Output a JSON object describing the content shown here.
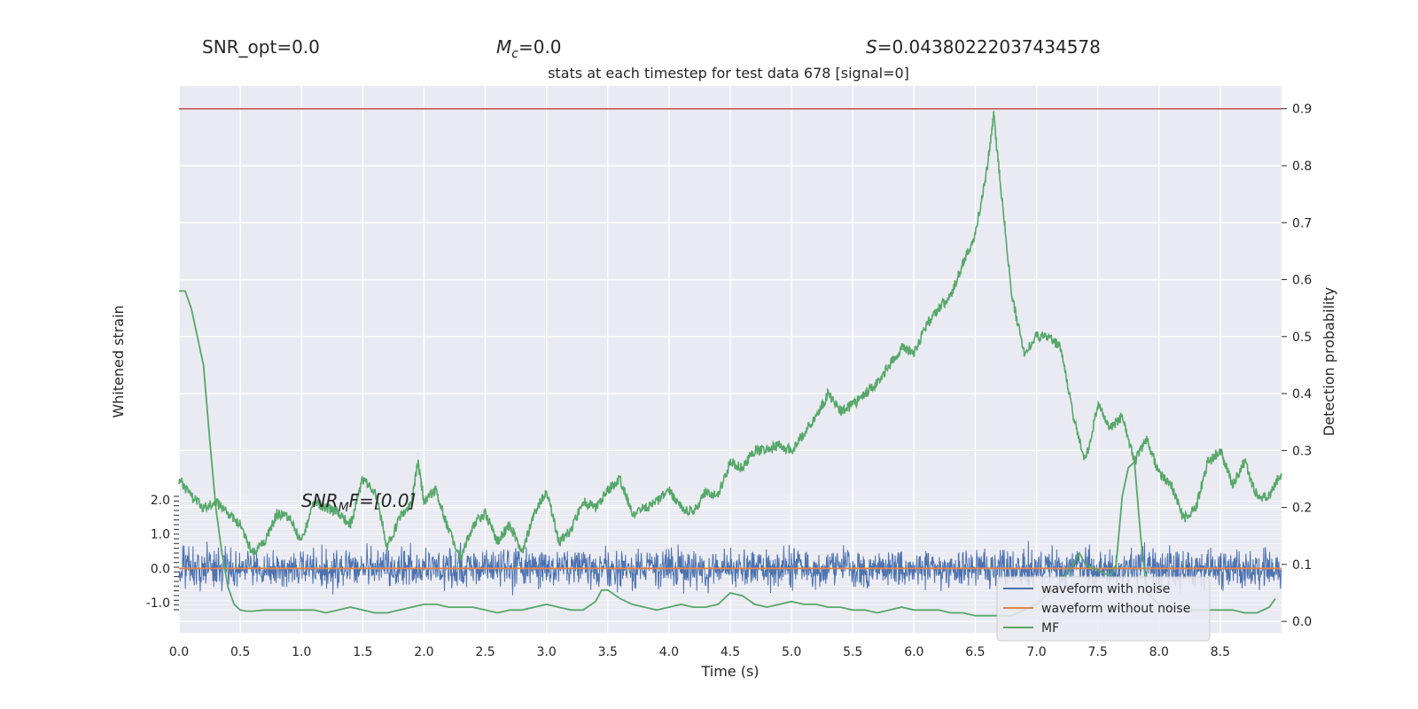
{
  "header": {
    "snr_opt": "SNR_opt=0.0",
    "mc_symbol": "M",
    "mc_sub": "c",
    "mc_value": "=0.0",
    "s_symbol": "S",
    "s_value": "=0.04380222037434578",
    "snr_mf_label": "SNR",
    "snr_mf_sub": "M",
    "snr_mf_rest": "F=[0.0]"
  },
  "chart_data": {
    "type": "line",
    "title": "stats at each timestep for test data 678 [signal=0]",
    "xlabel": "Time (s)",
    "ylabel_left": "Whitened strain",
    "ylabel_right": "Detection probability",
    "xlim": [
      0.0,
      9.0
    ],
    "ylim_right": [
      -0.02,
      0.94
    ],
    "ylim_left": [
      -1.2,
      2.1
    ],
    "x_ticks": [
      "0.0",
      "0.5",
      "1.0",
      "1.5",
      "2.0",
      "2.5",
      "3.0",
      "3.5",
      "4.0",
      "4.5",
      "5.0",
      "5.5",
      "6.0",
      "6.5",
      "7.0",
      "7.5",
      "8.0",
      "8.5"
    ],
    "x_tick_values": [
      0.0,
      0.5,
      1.0,
      1.5,
      2.0,
      2.5,
      3.0,
      3.5,
      4.0,
      4.5,
      5.0,
      5.5,
      6.0,
      6.5,
      7.0,
      7.5,
      8.0,
      8.5
    ],
    "y_right_ticks": [
      "0.0",
      "0.1",
      "0.2",
      "0.3",
      "0.4",
      "0.5",
      "0.6",
      "0.7",
      "0.8",
      "0.9"
    ],
    "y_right_tick_values": [
      0.0,
      0.1,
      0.2,
      0.3,
      0.4,
      0.5,
      0.6,
      0.7,
      0.8,
      0.9
    ],
    "y_left_ticks": [
      "2.0",
      "1.0",
      "0.0",
      "-1.0"
    ],
    "y_left_tick_values": [
      2.0,
      1.0,
      0.0,
      -1.0
    ],
    "threshold": 0.9,
    "grid": true,
    "legend_position": "lower-right",
    "legend": [
      "waveform with noise",
      "waveform without noise",
      "MF"
    ],
    "colors": {
      "noise": "#4c72b0",
      "clean": "#dd8452",
      "mf": "#55a868",
      "threshold": "#c44e52",
      "panel_bg": "#eaeaf2",
      "grid": "#ffffff"
    },
    "series": [
      {
        "name": "Detection probability",
        "axis": "right",
        "x": [
          0.0,
          0.1,
          0.2,
          0.3,
          0.4,
          0.5,
          0.6,
          0.7,
          0.8,
          0.9,
          1.0,
          1.1,
          1.2,
          1.3,
          1.4,
          1.5,
          1.6,
          1.7,
          1.8,
          1.9,
          1.95,
          2.0,
          2.1,
          2.2,
          2.3,
          2.4,
          2.5,
          2.6,
          2.7,
          2.8,
          2.9,
          3.0,
          3.1,
          3.2,
          3.3,
          3.4,
          3.5,
          3.6,
          3.7,
          3.8,
          3.9,
          4.0,
          4.1,
          4.2,
          4.3,
          4.4,
          4.5,
          4.6,
          4.7,
          4.8,
          4.9,
          5.0,
          5.1,
          5.2,
          5.3,
          5.4,
          5.5,
          5.6,
          5.7,
          5.8,
          5.9,
          6.0,
          6.1,
          6.2,
          6.3,
          6.4,
          6.5,
          6.6,
          6.65,
          6.7,
          6.8,
          6.9,
          7.0,
          7.1,
          7.2,
          7.3,
          7.4,
          7.5,
          7.6,
          7.7,
          7.8,
          7.9,
          8.0,
          8.1,
          8.2,
          8.3,
          8.4,
          8.5,
          8.6,
          8.7,
          8.8,
          8.9,
          9.0
        ],
        "values": [
          0.25,
          0.22,
          0.2,
          0.21,
          0.19,
          0.17,
          0.12,
          0.14,
          0.19,
          0.18,
          0.14,
          0.21,
          0.2,
          0.19,
          0.17,
          0.25,
          0.23,
          0.13,
          0.18,
          0.21,
          0.28,
          0.21,
          0.23,
          0.16,
          0.11,
          0.17,
          0.19,
          0.14,
          0.17,
          0.12,
          0.19,
          0.23,
          0.14,
          0.16,
          0.21,
          0.2,
          0.23,
          0.25,
          0.19,
          0.2,
          0.21,
          0.23,
          0.2,
          0.19,
          0.23,
          0.22,
          0.28,
          0.27,
          0.3,
          0.3,
          0.31,
          0.3,
          0.33,
          0.36,
          0.4,
          0.37,
          0.38,
          0.4,
          0.42,
          0.45,
          0.48,
          0.47,
          0.52,
          0.55,
          0.57,
          0.63,
          0.68,
          0.8,
          0.89,
          0.78,
          0.57,
          0.47,
          0.5,
          0.5,
          0.48,
          0.36,
          0.28,
          0.38,
          0.34,
          0.36,
          0.28,
          0.32,
          0.26,
          0.24,
          0.18,
          0.2,
          0.28,
          0.3,
          0.24,
          0.28,
          0.22,
          0.22,
          0.26
        ]
      },
      {
        "name": "MF",
        "axis": "right",
        "x": [
          0.0,
          0.05,
          0.1,
          0.2,
          0.25,
          0.3,
          0.35,
          0.4,
          0.45,
          0.5,
          0.55,
          0.6,
          0.7,
          0.8,
          0.9,
          1.0,
          1.1,
          1.2,
          1.3,
          1.4,
          1.5,
          1.6,
          1.7,
          1.8,
          1.9,
          2.0,
          2.1,
          2.2,
          2.3,
          2.4,
          2.5,
          2.6,
          2.7,
          2.8,
          2.9,
          3.0,
          3.1,
          3.2,
          3.3,
          3.4,
          3.45,
          3.5,
          3.6,
          3.7,
          3.8,
          3.9,
          4.0,
          4.1,
          4.2,
          4.3,
          4.4,
          4.5,
          4.6,
          4.7,
          4.8,
          4.9,
          5.0,
          5.1,
          5.2,
          5.3,
          5.4,
          5.5,
          5.6,
          5.7,
          5.8,
          5.9,
          6.0,
          6.1,
          6.2,
          6.3,
          6.4,
          6.5,
          6.6,
          6.7,
          6.8,
          6.9,
          7.0,
          7.1,
          7.2,
          7.3,
          7.35,
          7.4,
          7.5,
          7.6,
          7.65,
          7.7,
          7.75,
          7.8,
          7.85,
          7.9,
          8.0,
          8.1,
          8.2,
          8.3,
          8.4,
          8.5,
          8.6,
          8.7,
          8.8,
          8.9,
          8.95
        ],
        "values": [
          0.58,
          0.58,
          0.55,
          0.45,
          0.32,
          0.2,
          0.12,
          0.06,
          0.03,
          0.02,
          0.018,
          0.018,
          0.02,
          0.02,
          0.02,
          0.02,
          0.02,
          0.015,
          0.02,
          0.025,
          0.02,
          0.015,
          0.015,
          0.02,
          0.025,
          0.03,
          0.03,
          0.025,
          0.025,
          0.025,
          0.02,
          0.015,
          0.02,
          0.02,
          0.025,
          0.03,
          0.025,
          0.02,
          0.02,
          0.035,
          0.055,
          0.055,
          0.04,
          0.03,
          0.025,
          0.02,
          0.025,
          0.03,
          0.025,
          0.025,
          0.03,
          0.05,
          0.045,
          0.03,
          0.025,
          0.03,
          0.035,
          0.03,
          0.03,
          0.025,
          0.025,
          0.02,
          0.02,
          0.015,
          0.02,
          0.025,
          0.02,
          0.02,
          0.02,
          0.015,
          0.015,
          0.01,
          0.01,
          0.01,
          0.01,
          0.02,
          0.03,
          0.05,
          0.07,
          0.1,
          0.12,
          0.1,
          0.09,
          0.08,
          0.1,
          0.22,
          0.27,
          0.28,
          0.15,
          0.05,
          0.03,
          0.025,
          0.02,
          0.02,
          0.02,
          0.02,
          0.02,
          0.015,
          0.015,
          0.025,
          0.04
        ]
      },
      {
        "name": "waveform with noise",
        "axis": "left",
        "x_range": [
          0.0,
          9.0
        ],
        "center": 0.0,
        "amplitude": 0.4
      },
      {
        "name": "waveform without noise",
        "axis": "left",
        "x": [
          0.0,
          9.0
        ],
        "values": [
          0.0,
          0.0
        ]
      }
    ]
  }
}
